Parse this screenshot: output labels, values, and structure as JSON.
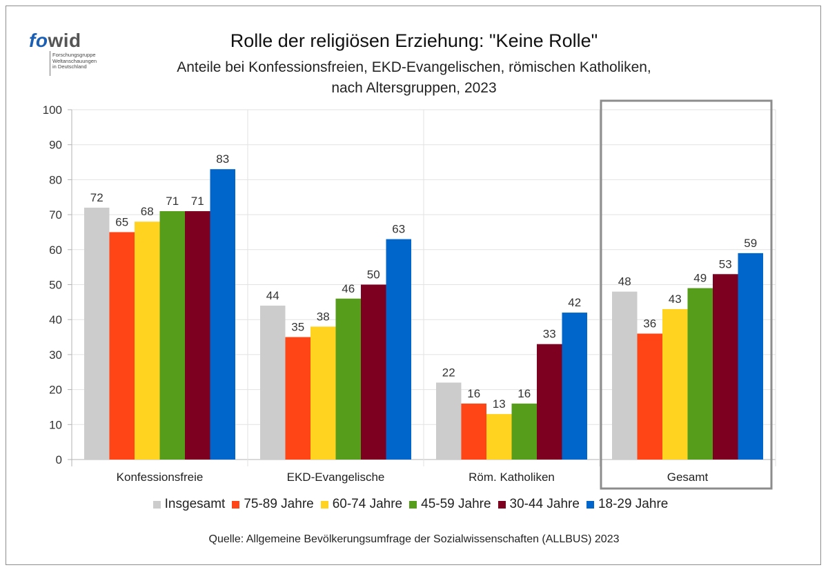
{
  "title": "Rolle der religiösen Erziehung: \"Keine Rolle\"",
  "subtitle_line1": "Anteile bei Konfessionsfreien, EKD-Evangelischen, römischen Katholiken,",
  "subtitle_line2": "nach Altersgruppen, 2023",
  "source": "Quelle: Allgemeine Bevölkerungsumfrage der Sozialwissenschaften (ALLBUS) 2023",
  "logo": {
    "word_fo": "fo",
    "word_wid": "wid",
    "line1": "Forschungsgruppe",
    "line2": "Weltanschauungen",
    "line3": "in Deutschland"
  },
  "chart_data": {
    "type": "bar",
    "categories": [
      "Konfessionsfreie",
      "EKD-Evangelische",
      "Röm. Katholiken",
      "Gesamt"
    ],
    "series": [
      {
        "name": "Insgesamt",
        "color": "#cccccc",
        "values": [
          72,
          44,
          22,
          48
        ]
      },
      {
        "name": "75-89 Jahre",
        "color": "#ff4415",
        "values": [
          65,
          35,
          16,
          36
        ]
      },
      {
        "name": "60-74 Jahre",
        "color": "#ffd320",
        "values": [
          68,
          38,
          13,
          43
        ]
      },
      {
        "name": "45-59 Jahre",
        "color": "#579d1c",
        "values": [
          71,
          46,
          16,
          49
        ]
      },
      {
        "name": "30-44 Jahre",
        "color": "#7e0021",
        "values": [
          71,
          50,
          33,
          53
        ]
      },
      {
        "name": "18-29 Jahre",
        "color": "#0066cc",
        "values": [
          83,
          63,
          42,
          59
        ]
      }
    ],
    "ylim": [
      0,
      100
    ],
    "yticks": [
      0,
      10,
      20,
      30,
      40,
      50,
      60,
      70,
      80,
      90,
      100
    ],
    "grid": true,
    "legend_position": "bottom",
    "highlighted_category": "Gesamt"
  }
}
